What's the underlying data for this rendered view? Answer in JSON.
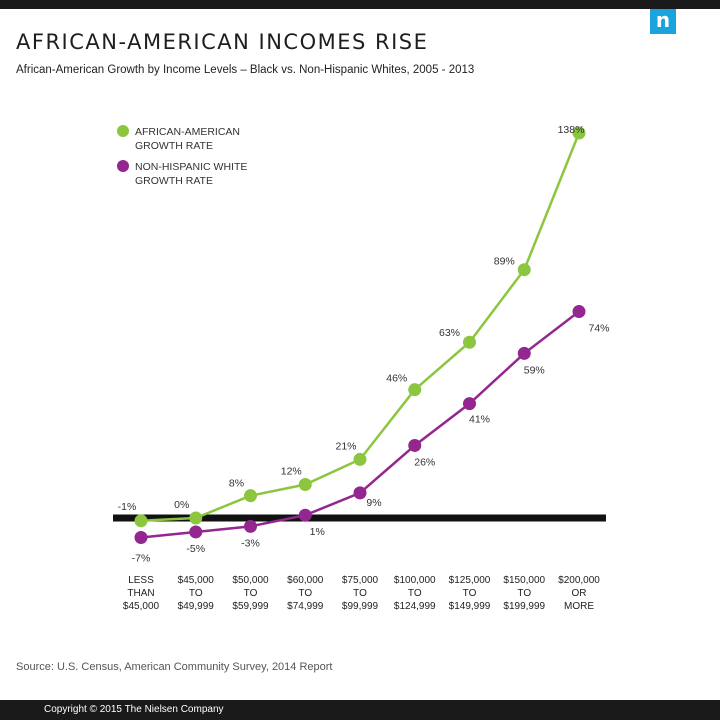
{
  "header": {
    "title": "AFRICAN-AMERICAN INCOMES RISE",
    "subtitle": "African-American Growth by Income Levels – Black vs. Non-Hispanic Whites, 2005 - 2013",
    "logo_letter": "n"
  },
  "footer": {
    "source": "Source: U.S. Census, American Community Survey, 2014 Report",
    "copyright": "Copyright © 2015 The Nielsen Company"
  },
  "colors": {
    "african_american": "#8cc63f",
    "non_hispanic_white": "#93278f",
    "baseline": "#111111",
    "logo": "#1aa3dc"
  },
  "chart_data": {
    "type": "line",
    "categories": [
      [
        "LESS",
        "THAN",
        "$45,000"
      ],
      [
        "$45,000",
        "TO",
        "$49,999"
      ],
      [
        "$50,000",
        "TO",
        "$59,999"
      ],
      [
        "$60,000",
        "TO",
        "$74,999"
      ],
      [
        "$75,000",
        "TO",
        "$99,999"
      ],
      [
        "$100,000",
        "TO",
        "$124,999"
      ],
      [
        "$125,000",
        "TO",
        "$149,999"
      ],
      [
        "$150,000",
        "TO",
        "$199,999"
      ],
      [
        "$200,000",
        "OR",
        "MORE"
      ]
    ],
    "series": [
      {
        "name": [
          "AFRICAN-AMERICAN",
          "GROWTH RATE"
        ],
        "values": [
          -1,
          0,
          8,
          12,
          21,
          46,
          63,
          89,
          138
        ],
        "labels": [
          "-1%",
          "0%",
          "8%",
          "12%",
          "21%",
          "46%",
          "63%",
          "89%",
          "138%"
        ],
        "color": "#8cc63f"
      },
      {
        "name": [
          "NON-HISPANIC WHITE",
          "GROWTH RATE"
        ],
        "values": [
          -7,
          -5,
          -3,
          1,
          9,
          26,
          41,
          59,
          74
        ],
        "labels": [
          "-7%",
          "-5%",
          "-3%",
          "1%",
          "9%",
          "26%",
          "41%",
          "59%",
          "74%"
        ],
        "color": "#93278f"
      }
    ],
    "ylim": [
      -10,
      140
    ],
    "grid": false,
    "legend": "top-left"
  }
}
